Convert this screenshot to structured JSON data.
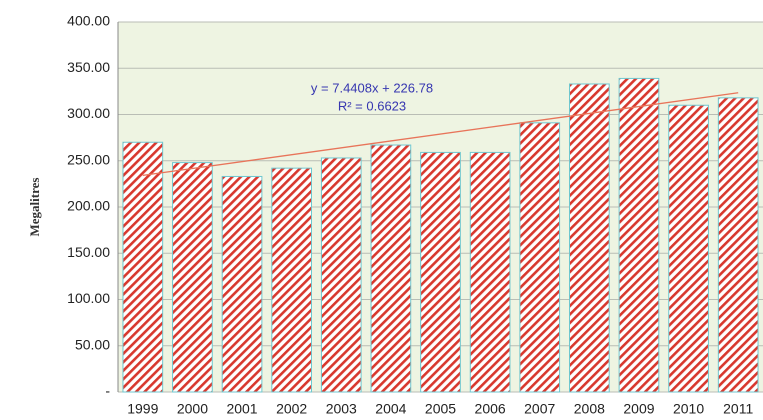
{
  "chart_data": {
    "type": "bar",
    "y_label": "Megalitres",
    "categories": [
      "1999",
      "2000",
      "2001",
      "2002",
      "2003",
      "2004",
      "2005",
      "2006",
      "2007",
      "2008",
      "2009",
      "2010",
      "2011"
    ],
    "values": [
      270,
      248,
      233,
      242,
      253,
      267,
      259,
      259,
      291,
      333,
      339,
      310,
      318
    ],
    "color": "#d8382e",
    "ylim": [
      0,
      400
    ],
    "yticks": [
      {
        "value": 0,
        "label": "-"
      },
      {
        "value": 50,
        "label": "50.00"
      },
      {
        "value": 100,
        "label": "100.00"
      },
      {
        "value": 150,
        "label": "150.00"
      },
      {
        "value": 200,
        "label": "200.00"
      },
      {
        "value": 250,
        "label": "250.00"
      },
      {
        "value": 300,
        "label": "300.00"
      },
      {
        "value": 350,
        "label": "350.00"
      },
      {
        "value": 400,
        "label": "400.00"
      }
    ],
    "grid": true,
    "trendline": {
      "equation": "y = 7.4408x + 226.78",
      "r_squared": "R² = 0.6623",
      "color": "#e8745a",
      "values": [
        234.22,
        323.51
      ]
    }
  }
}
